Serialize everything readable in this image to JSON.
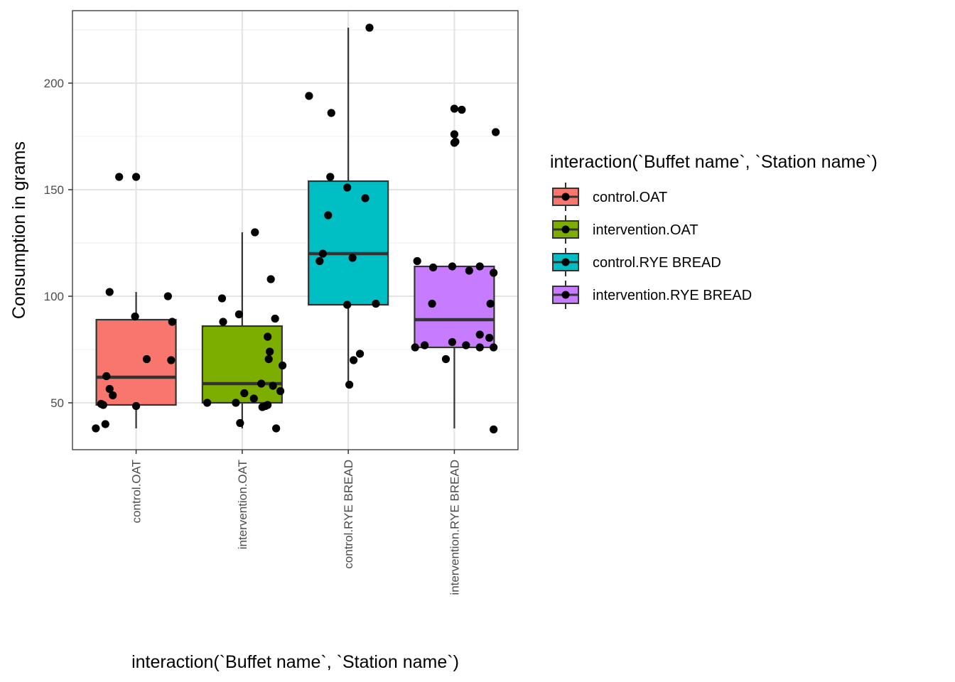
{
  "chart_data": {
    "type": "boxplot",
    "xlabel": "interaction(`Buffet name`, `Station name`)",
    "ylabel": "Consumption in grams",
    "ylim": [
      28,
      234
    ],
    "yticks": [
      50,
      100,
      150,
      200
    ],
    "grid": true,
    "legend": {
      "title": "interaction(`Buffet name`, `Station name`)",
      "placement": "right"
    },
    "categories": [
      "control.OAT",
      "intervention.OAT",
      "control.RYE BREAD",
      "intervention.RYE BREAD"
    ],
    "colors": [
      "#F8766D",
      "#7CAE00",
      "#00BFC4",
      "#C77CFF"
    ],
    "boxes": [
      {
        "category": "control.OAT",
        "whisker_low": 38,
        "q1": 49,
        "median": 62,
        "q3": 89,
        "whisker_high": 102
      },
      {
        "category": "intervention.OAT",
        "whisker_low": 38,
        "q1": 50,
        "median": 59,
        "q3": 86,
        "whisker_high": 130
      },
      {
        "category": "control.RYE BREAD",
        "whisker_low": 58,
        "q1": 96,
        "median": 120,
        "q3": 154,
        "whisker_high": 226
      },
      {
        "category": "intervention.RYE BREAD",
        "whisker_low": 38,
        "q1": 76,
        "median": 89,
        "q3": 114,
        "whisker_high": 114
      }
    ],
    "points": [
      {
        "category": "control.OAT",
        "values": [
          {
            "v": 156,
            "j": -0.16
          },
          {
            "v": 156,
            "j": 0.0
          },
          {
            "v": 102,
            "j": -0.25
          },
          {
            "v": 100,
            "j": 0.3
          },
          {
            "v": 90.5,
            "j": -0.01
          },
          {
            "v": 88,
            "j": 0.34
          },
          {
            "v": 70.5,
            "j": 0.1
          },
          {
            "v": 70,
            "j": 0.33
          },
          {
            "v": 62.5,
            "j": -0.28
          },
          {
            "v": 56.5,
            "j": -0.25
          },
          {
            "v": 53.5,
            "j": -0.22
          },
          {
            "v": 49.5,
            "j": -0.33
          },
          {
            "v": 49,
            "j": -0.31
          },
          {
            "v": 48.5,
            "j": 0.0
          },
          {
            "v": 40,
            "j": -0.29
          },
          {
            "v": 38,
            "j": -0.38
          }
        ]
      },
      {
        "category": "intervention.OAT",
        "values": [
          {
            "v": 130,
            "j": 0.12
          },
          {
            "v": 108,
            "j": 0.27
          },
          {
            "v": 99,
            "j": -0.19
          },
          {
            "v": 91.5,
            "j": -0.03
          },
          {
            "v": 89.5,
            "j": 0.31
          },
          {
            "v": 88,
            "j": -0.18
          },
          {
            "v": 81,
            "j": 0.24
          },
          {
            "v": 74,
            "j": 0.26
          },
          {
            "v": 70.5,
            "j": 0.25
          },
          {
            "v": 67.5,
            "j": 0.38
          },
          {
            "v": 59,
            "j": 0.18
          },
          {
            "v": 58,
            "j": 0.29
          },
          {
            "v": 55.5,
            "j": 0.36
          },
          {
            "v": 54.5,
            "j": 0.02
          },
          {
            "v": 52,
            "j": 0.11
          },
          {
            "v": 50,
            "j": -0.33
          },
          {
            "v": 50,
            "j": -0.06
          },
          {
            "v": 49,
            "j": 0.24
          },
          {
            "v": 48.5,
            "j": 0.22
          },
          {
            "v": 48,
            "j": 0.19
          },
          {
            "v": 40.5,
            "j": -0.02
          },
          {
            "v": 38,
            "j": 0.32
          }
        ]
      },
      {
        "category": "control.RYE BREAD",
        "values": [
          {
            "v": 226,
            "j": 0.2
          },
          {
            "v": 194,
            "j": -0.37
          },
          {
            "v": 186,
            "j": -0.16
          },
          {
            "v": 156,
            "j": -0.17
          },
          {
            "v": 151,
            "j": -0.01
          },
          {
            "v": 146,
            "j": 0.16
          },
          {
            "v": 138,
            "j": -0.19
          },
          {
            "v": 120,
            "j": -0.24
          },
          {
            "v": 118,
            "j": 0.04
          },
          {
            "v": 116.5,
            "j": -0.27
          },
          {
            "v": 96.5,
            "j": 0.26
          },
          {
            "v": 96,
            "j": -0.01
          },
          {
            "v": 73,
            "j": 0.11
          },
          {
            "v": 70,
            "j": 0.05
          },
          {
            "v": 58.5,
            "j": 0.01
          }
        ]
      },
      {
        "category": "intervention.RYE BREAD",
        "values": [
          {
            "v": 188,
            "j": 0.0
          },
          {
            "v": 187.5,
            "j": 0.07
          },
          {
            "v": 177,
            "j": 0.39
          },
          {
            "v": 176,
            "j": 0.0
          },
          {
            "v": 172.5,
            "j": 0.01
          },
          {
            "v": 172,
            "j": 0.0
          },
          {
            "v": 116.5,
            "j": -0.35
          },
          {
            "v": 114,
            "j": -0.02
          },
          {
            "v": 114,
            "j": 0.24
          },
          {
            "v": 113.5,
            "j": -0.2
          },
          {
            "v": 112,
            "j": 0.14
          },
          {
            "v": 111,
            "j": 0.37
          },
          {
            "v": 96.5,
            "j": -0.21
          },
          {
            "v": 96.5,
            "j": 0.34
          },
          {
            "v": 82,
            "j": 0.24
          },
          {
            "v": 80.5,
            "j": 0.33
          },
          {
            "v": 78.5,
            "j": -0.02
          },
          {
            "v": 77,
            "j": -0.28
          },
          {
            "v": 77,
            "j": 0.11
          },
          {
            "v": 76,
            "j": -0.37
          },
          {
            "v": 76,
            "j": 0.24
          },
          {
            "v": 76,
            "j": 0.37
          },
          {
            "v": 70.5,
            "j": -0.08
          },
          {
            "v": 37.5,
            "j": 0.37
          }
        ]
      }
    ]
  }
}
